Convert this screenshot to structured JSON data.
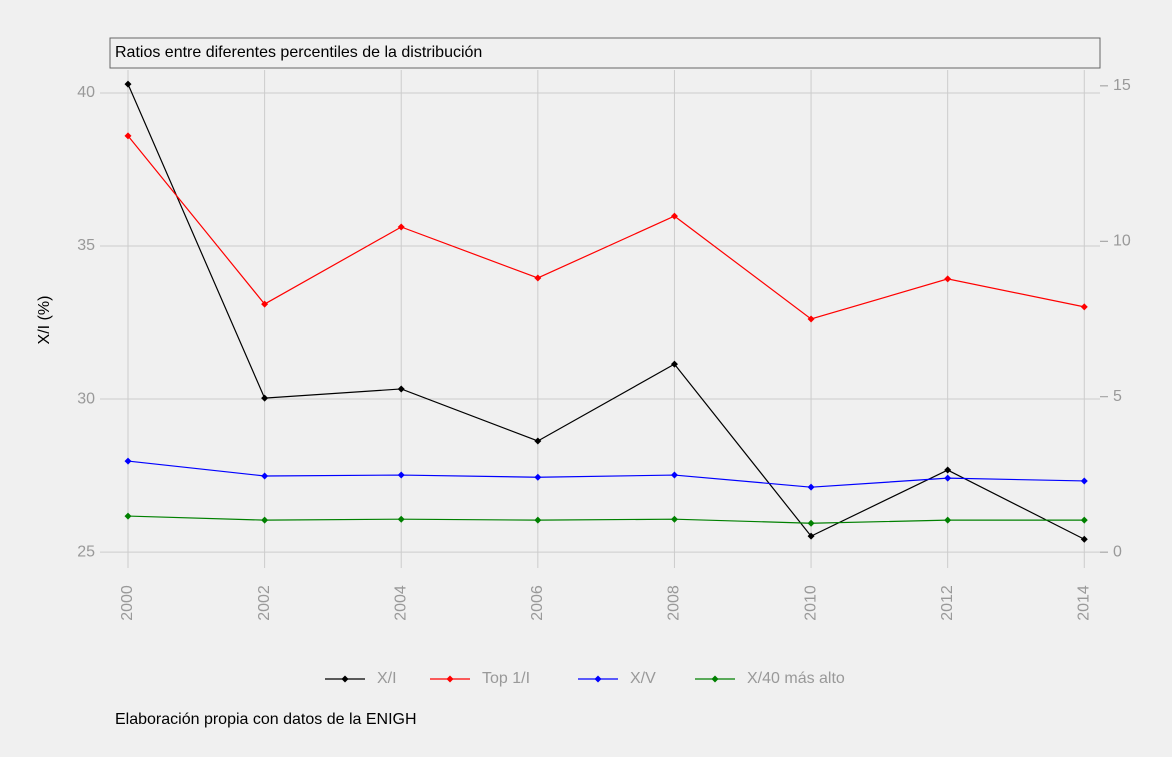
{
  "chart_data": {
    "type": "line",
    "title": "Ratios entre diferentes percentiles de la distribución",
    "ylabel": "X/I (%)",
    "caption": "Elaboración propia con datos de la ENIGH",
    "x": [
      2000,
      2002,
      2004,
      2006,
      2008,
      2010,
      2012,
      2014
    ],
    "xlim": [
      1999.59,
      2014.23
    ],
    "xticks": [
      2000,
      2002,
      2004,
      2006,
      2008,
      2010,
      2012,
      2014
    ],
    "ylim": [
      24.48,
      40.75
    ],
    "yticks": [
      25,
      30,
      35,
      40
    ],
    "y2lim": [
      -0.51,
      15.51
    ],
    "y2ticks": [
      0,
      5,
      10,
      15
    ],
    "grid": true,
    "legend": "bottom",
    "series": [
      {
        "name": "X/I",
        "color": "#000000",
        "values": [
          40.29,
          30.03,
          30.33,
          28.63,
          31.14,
          25.52,
          27.68,
          25.42
        ]
      },
      {
        "name": "Top 1/I",
        "color": "#ff0000",
        "axis": "y2",
        "values": [
          13.39,
          7.98,
          10.46,
          8.82,
          10.81,
          7.5,
          8.79,
          7.89
        ]
      },
      {
        "name": "X/V",
        "color": "#0000ff",
        "axis": "y2",
        "values": [
          2.93,
          2.45,
          2.48,
          2.41,
          2.48,
          2.09,
          2.38,
          2.29
        ]
      },
      {
        "name": "X/40 más alto",
        "color": "#008000",
        "axis": "y2",
        "values": [
          1.16,
          1.03,
          1.06,
          1.03,
          1.06,
          0.93,
          1.03,
          1.03
        ]
      }
    ]
  }
}
